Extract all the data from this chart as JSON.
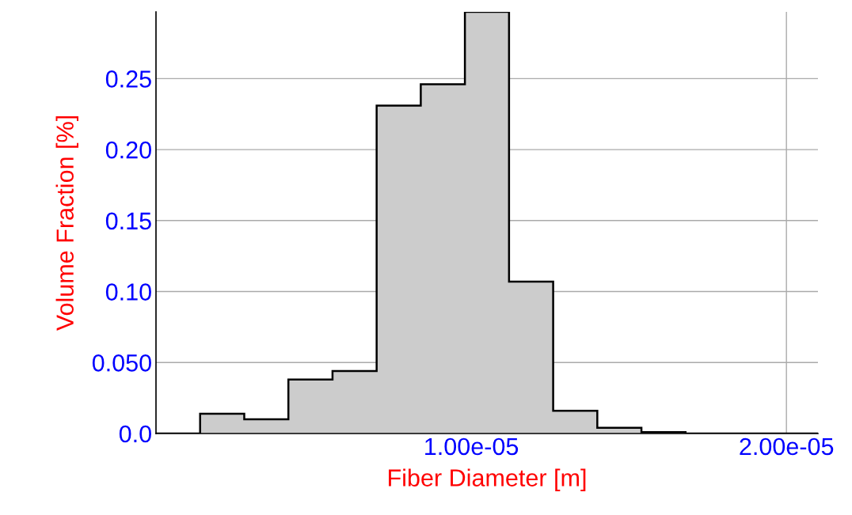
{
  "chart_data": {
    "type": "histogram",
    "xlabel": "Fiber Diameter [m]",
    "ylabel": "Volume Fraction [%]",
    "bins": [
      0,
      1.4e-06,
      2.8e-06,
      4.2e-06,
      5.6e-06,
      7e-06,
      8.4e-06,
      9.8e-06,
      1.12e-05,
      1.26e-05,
      1.4e-05,
      1.54e-05,
      1.68e-05,
      1.82e-05,
      1.96e-05,
      2.1e-05
    ],
    "values": [
      0,
      0.014,
      0.01,
      0.038,
      0.044,
      0.231,
      0.246,
      0.297,
      0.107,
      0.016,
      0.004,
      0.001,
      0.0,
      0.0,
      0.0
    ],
    "color": "#cccccc",
    "xlim": [
      0,
      2.1e-05
    ],
    "ylim": [
      0,
      0.297
    ],
    "xticks": [
      {
        "value": 1e-05,
        "label": "1.00e-05"
      },
      {
        "value": 2e-05,
        "label": "2.00e-05"
      }
    ],
    "yticks": [
      {
        "value": 0,
        "label": "0.0"
      },
      {
        "value": 0.05,
        "label": "0.050"
      },
      {
        "value": 0.1,
        "label": "0.10"
      },
      {
        "value": 0.15,
        "label": "0.15"
      },
      {
        "value": 0.2,
        "label": "0.20"
      },
      {
        "value": 0.25,
        "label": "0.25"
      }
    ],
    "grid": true,
    "legend": false
  }
}
